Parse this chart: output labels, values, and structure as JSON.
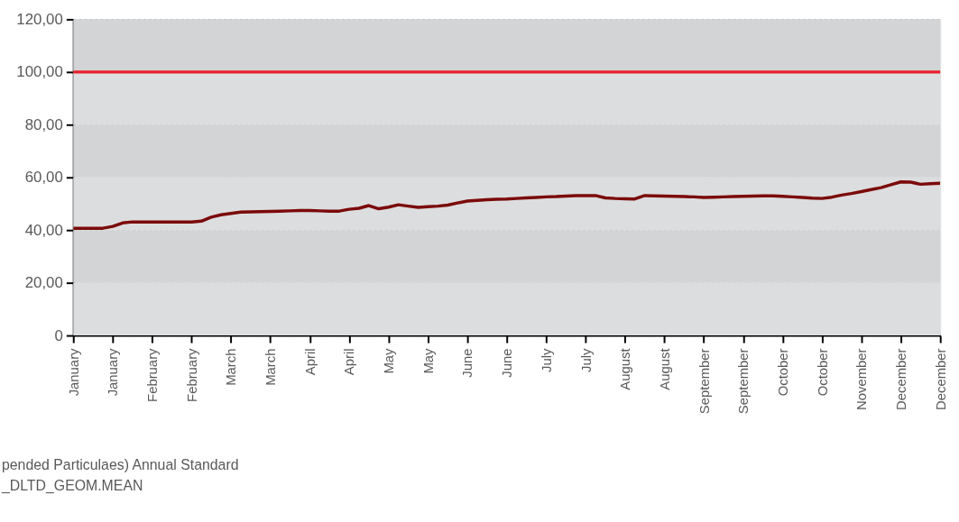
{
  "chart_data": {
    "type": "line",
    "categories": [
      "January",
      null,
      null,
      null,
      "January",
      null,
      null,
      null,
      "February",
      null,
      null,
      null,
      "February",
      null,
      null,
      null,
      "March",
      null,
      null,
      null,
      "March",
      null,
      null,
      null,
      "April",
      null,
      null,
      null,
      "April",
      null,
      null,
      null,
      "May",
      null,
      null,
      null,
      "May",
      null,
      null,
      null,
      "June",
      null,
      null,
      null,
      "June",
      null,
      null,
      null,
      "July",
      null,
      null,
      null,
      "July",
      null,
      null,
      null,
      "August",
      null,
      null,
      null,
      "August",
      null,
      null,
      null,
      "September",
      null,
      null,
      null,
      "September",
      null,
      null,
      null,
      "October",
      null,
      null,
      null,
      "October",
      null,
      null,
      null,
      "November",
      null,
      null,
      null,
      "December",
      null,
      null,
      null,
      "December"
    ],
    "series": [
      {
        "color": "#7b0a0a",
        "values": [
          40.7,
          40.7,
          40.7,
          40.7,
          41.4,
          42.7,
          43.1,
          43.1,
          43.1,
          43.1,
          43.1,
          43.1,
          43.1,
          43.4,
          44.9,
          45.8,
          46.3,
          46.8,
          46.9,
          47.0,
          47.1,
          47.2,
          47.3,
          47.4,
          47.4,
          47.3,
          47.2,
          47.2,
          47.9,
          48.3,
          49.3,
          48.1,
          48.7,
          49.6,
          49.1,
          48.6,
          48.9,
          49.1,
          49.5,
          50.3,
          51.0,
          51.3,
          51.5,
          51.7,
          51.8,
          52.0,
          52.2,
          52.4,
          52.6,
          52.7,
          52.9,
          53.1,
          53.1,
          53.1,
          52.2,
          52.0,
          51.9,
          51.8,
          53.1,
          53.0,
          52.9,
          52.8,
          52.7,
          52.6,
          52.4,
          52.5,
          52.6,
          52.7,
          52.8,
          52.9,
          53.0,
          53.0,
          52.8,
          52.6,
          52.4,
          52.1,
          52.0,
          52.5,
          53.3,
          53.9,
          54.6,
          55.4,
          56.1,
          57.2,
          58.3,
          58.2,
          57.4,
          57.6,
          57.8
        ]
      }
    ],
    "ylim": [
      0,
      120
    ],
    "yticks": [
      0,
      {
        "value": 20,
        "label": "20,00"
      },
      {
        "value": 40,
        "label": "40,00"
      },
      {
        "value": 60,
        "label": "60,00"
      },
      {
        "value": 80,
        "label": "80,00"
      },
      {
        "value": 100,
        "label": "100,00"
      },
      {
        "value": 120,
        "label": "120,00"
      }
    ],
    "grid": "y",
    "line_style": "solid",
    "marker": "none",
    "ref_lines": [
      {
        "axis": "y",
        "value": 100,
        "color": "#e8202a"
      }
    ],
    "bands": [
      {
        "axis": "y",
        "from": 0,
        "to": 20,
        "color": "#dcdddf"
      },
      {
        "axis": "y",
        "from": 20,
        "to": 40,
        "color": "#d3d4d6"
      },
      {
        "axis": "y",
        "from": 40,
        "to": 60,
        "color": "#dcdddf"
      },
      {
        "axis": "y",
        "from": 60,
        "to": 80,
        "color": "#d3d4d6"
      },
      {
        "axis": "y",
        "from": 80,
        "to": 100,
        "color": "#dcdddf"
      },
      {
        "axis": "y",
        "from": 100,
        "to": 120,
        "color": "#d3d4d6"
      }
    ],
    "annotations": [
      "pended Particulaes) Annual Standard",
      "_DLTD_GEOM.MEAN"
    ]
  }
}
